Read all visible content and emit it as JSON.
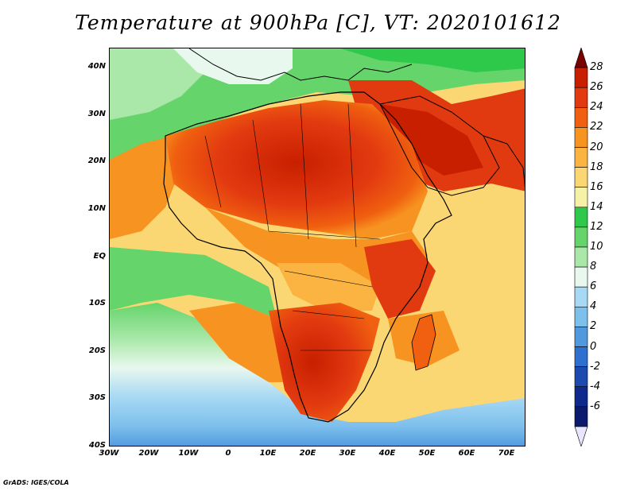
{
  "title": "Temperature at 900hPa [C], VT: 2020101612",
  "credit": "GrADS: IGES/COLA",
  "map": {
    "region_longitudes": [
      -30,
      75
    ],
    "region_latitudes": [
      -40,
      45
    ],
    "lat_ticks": [
      "40N",
      "30N",
      "20N",
      "10N",
      "EQ",
      "10S",
      "20S",
      "30S",
      "40S"
    ],
    "lon_ticks": [
      "30W",
      "20W",
      "10W",
      "0",
      "10E",
      "20E",
      "30E",
      "40E",
      "50E",
      "60E",
      "70E"
    ]
  },
  "colorbar": {
    "labels": [
      "28",
      "26",
      "24",
      "22",
      "20",
      "18",
      "16",
      "14",
      "12",
      "10",
      "8",
      "6",
      "4",
      "2",
      "0",
      "-2",
      "-4",
      "-6"
    ],
    "colors": [
      "#7a0000",
      "#c81f00",
      "#e23a10",
      "#f06010",
      "#f79320",
      "#fbb441",
      "#fbd774",
      "#f5f2a8",
      "#2ec84a",
      "#64d46b",
      "#a9e8a8",
      "#e8f8ef",
      "#a8d9f4",
      "#7ec0ec",
      "#5099df",
      "#2e70cf",
      "#1c4aae",
      "#0f2a8c",
      "#0b1a6e",
      "#e8e6ff"
    ]
  }
}
